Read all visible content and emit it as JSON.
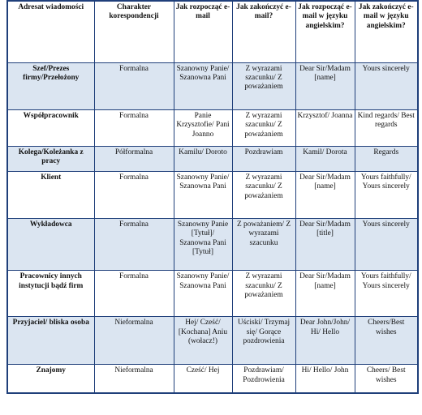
{
  "headers": [
    "Adresat wiadomości",
    "Charakter korespondencji",
    "Jak rozpocząć e-mail",
    "Jak zakończyć e-mail?",
    "Jak rozpocząć e-mail w języku angielskim?",
    "Jak zakończyć e-mail w języku angielskim?"
  ],
  "rows": [
    [
      "Szef/Prezes firmy/Przełożony",
      "Formalna",
      "Szanowny Panie/ Szanowna Pani",
      "Z wyrazami szacunku/ Z poważaniem",
      "Dear Sir/Madam [name]",
      "Yours sincerely"
    ],
    [
      "Współpracownik",
      "Formalna",
      "Panie Krzysztofie/ Pani Joanno",
      "Z wyrazami szacunku/ Z poważaniem",
      "Krzysztof/ Joanna",
      "Kind regards/ Best regards"
    ],
    [
      "Kolega/Koleżanka z pracy",
      "Półformalna",
      "Kamilu/ Doroto",
      "Pozdrawiam",
      "Kamil/ Dorota",
      "Regards"
    ],
    [
      "Klient",
      "Formalna",
      "Szanowny Panie/ Szanowna Pani",
      "Z wyrazami szacunku/ Z poważaniem",
      "Dear Sir/Madam [name]",
      "Yours faithfully/ Yours sincerely"
    ],
    [
      "Wykładowca",
      "Formalna",
      "Szanowny Panie [Tytuł]/ Szanowna Pani [Tytuł]",
      "Z poważaniem/ Z wyrazami szacunku",
      "Dear Sir/Madam [title]",
      "Yours sincerely"
    ],
    [
      "Pracownicy innych instytucji bądź firm",
      "Formalna",
      "Szanowny Panie/ Szanowna Pani",
      "Z wyrazami szacunku/ Z poważaniem",
      "Dear Sir/Madam [name]",
      "Yours faithfully/ Yours sincerely"
    ],
    [
      "Przyjaciel/ bliska osoba",
      "Nieformalna",
      "Hej/ Cześć/ [Kochana] Aniu (wołacz!)",
      "Uściski/ Trzymaj się/ Gorące pozdrowienia",
      "Dear John/John/ Hi/ Hello",
      "Cheers/Best wishes"
    ],
    [
      "Znajomy",
      "Nieformalna",
      "Cześć/ Hej",
      "Pozdrawiam/ Pozdrowienia",
      "Hi/ Hello/ John",
      "Cheers/ Best wishes"
    ]
  ]
}
